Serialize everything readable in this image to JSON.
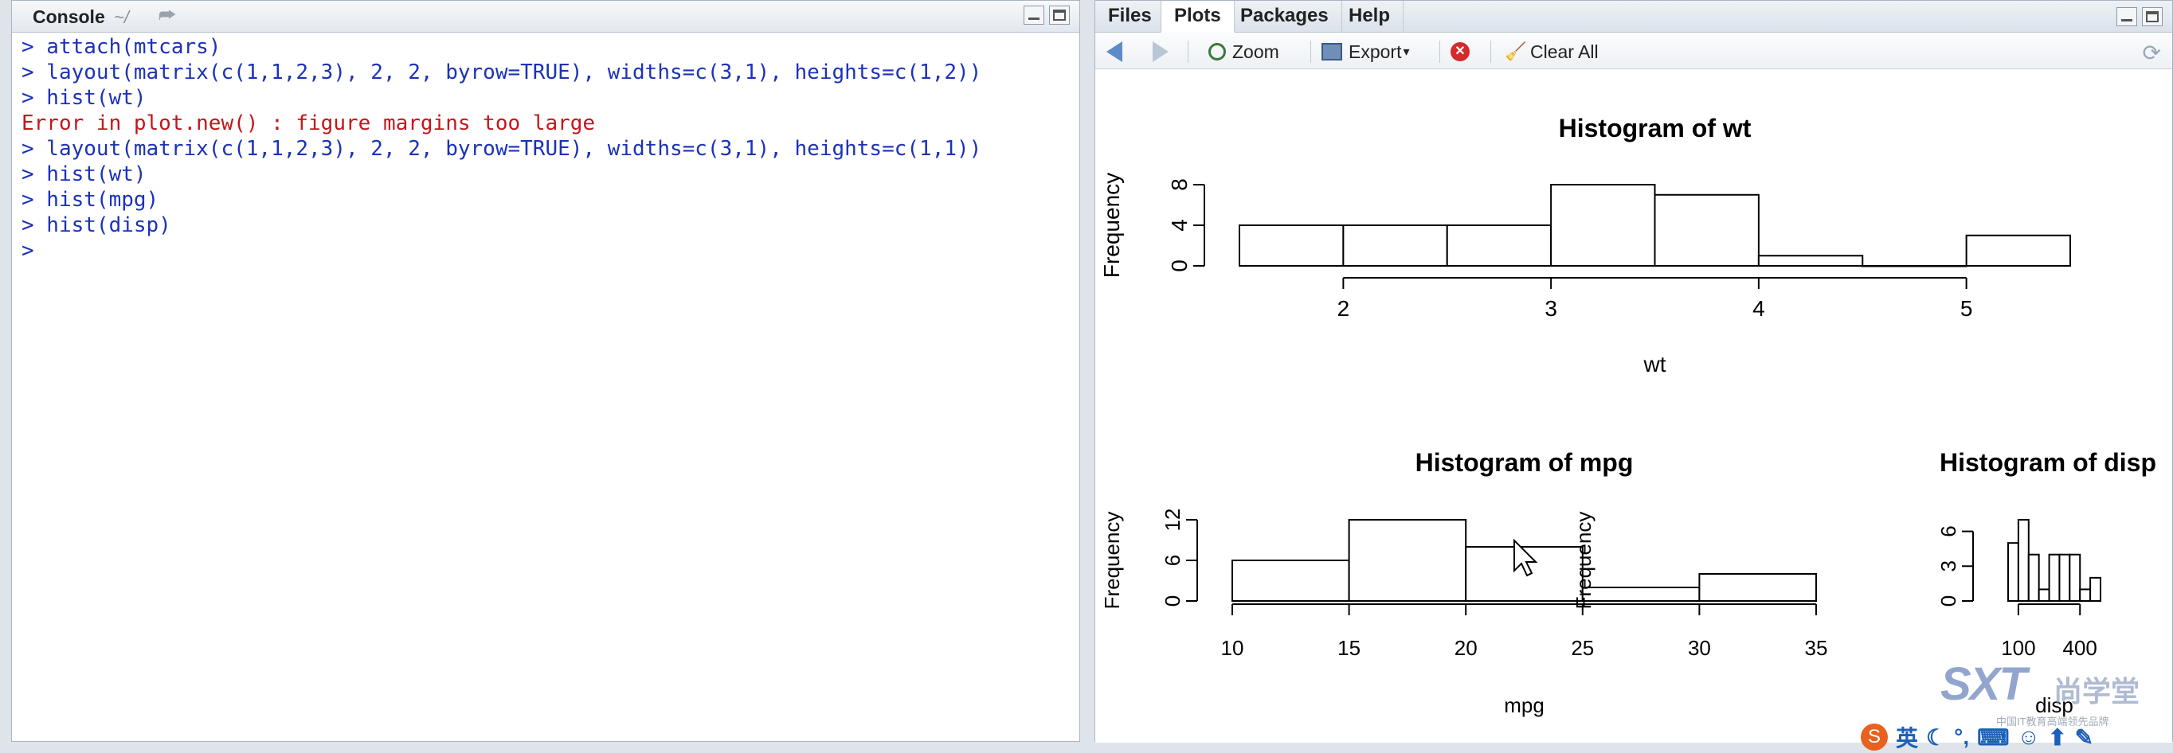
{
  "console": {
    "title": "Console",
    "path": "~/",
    "lines": [
      {
        "kind": "cmd",
        "text": "> attach(mtcars)"
      },
      {
        "kind": "cmd",
        "text": "> layout(matrix(c(1,1,2,3), 2, 2, byrow=TRUE), widths=c(3,1), heights=c(1,2))"
      },
      {
        "kind": "cmd",
        "text": "> hist(wt)"
      },
      {
        "kind": "err",
        "text": "Error in plot.new() : figure margins too large"
      },
      {
        "kind": "cmd",
        "text": "> layout(matrix(c(1,1,2,3), 2, 2, byrow=TRUE), widths=c(3,1), heights=c(1,1))"
      },
      {
        "kind": "cmd",
        "text": "> hist(wt)"
      },
      {
        "kind": "cmd",
        "text": "> hist(mpg)"
      },
      {
        "kind": "cmd",
        "text": "> hist(disp)"
      },
      {
        "kind": "cmd",
        "text": "> "
      }
    ]
  },
  "plots_pane": {
    "tabs": [
      "Files",
      "Plots",
      "Packages",
      "Help"
    ],
    "active_tab": "Plots",
    "toolbar": {
      "zoom": "Zoom",
      "export": "Export",
      "export_caret": "▾",
      "clear_all": "Clear All"
    }
  },
  "chart_data": [
    {
      "type": "bar",
      "title": "Histogram of wt",
      "xlabel": "wt",
      "ylabel": "Frequency",
      "bins": [
        [
          1.5,
          2.0
        ],
        [
          2.0,
          2.5
        ],
        [
          2.5,
          3.0
        ],
        [
          3.0,
          3.5
        ],
        [
          3.5,
          4.0
        ],
        [
          4.0,
          4.5
        ],
        [
          4.5,
          5.0
        ],
        [
          5.0,
          5.5
        ]
      ],
      "values": [
        4,
        4,
        4,
        8,
        7,
        1,
        0,
        3
      ],
      "xticks": [
        2,
        3,
        4,
        5
      ],
      "yticks": [
        0,
        4,
        8
      ],
      "xlim": [
        1.5,
        5.5
      ],
      "ylim": [
        0,
        8
      ]
    },
    {
      "type": "bar",
      "title": "Histogram of mpg",
      "xlabel": "mpg",
      "ylabel": "Frequency",
      "bins": [
        [
          10,
          15
        ],
        [
          15,
          20
        ],
        [
          20,
          25
        ],
        [
          25,
          30
        ],
        [
          30,
          35
        ]
      ],
      "values": [
        6,
        12,
        8,
        2,
        4
      ],
      "xticks": [
        10,
        15,
        20,
        25,
        30,
        35
      ],
      "yticks": [
        0,
        6,
        12
      ],
      "xlim": [
        10,
        35
      ],
      "ylim": [
        0,
        12
      ]
    },
    {
      "type": "bar",
      "title": "Histogram of disp",
      "xlabel": "disp",
      "ylabel": "Frequency",
      "bins": [
        [
          50,
          100
        ],
        [
          100,
          150
        ],
        [
          150,
          200
        ],
        [
          200,
          250
        ],
        [
          250,
          300
        ],
        [
          300,
          350
        ],
        [
          350,
          400
        ],
        [
          400,
          450
        ],
        [
          450,
          500
        ]
      ],
      "values": [
        5,
        7,
        4,
        1,
        4,
        4,
        4,
        1,
        2
      ],
      "xticks": [
        100,
        400
      ],
      "yticks": [
        0,
        3,
        6
      ],
      "xlim": [
        50,
        500
      ],
      "ylim": [
        0,
        7
      ]
    }
  ],
  "watermark": {
    "brand": "SXT",
    "cn_name": "尚学堂",
    "tagline": "中国IT教育高端领先品牌"
  },
  "tray": {
    "ime": "S",
    "lang": "英"
  },
  "colors": {
    "command": "#1c32b8",
    "error": "#c4161c",
    "pane_border": "#a9b4c2"
  }
}
